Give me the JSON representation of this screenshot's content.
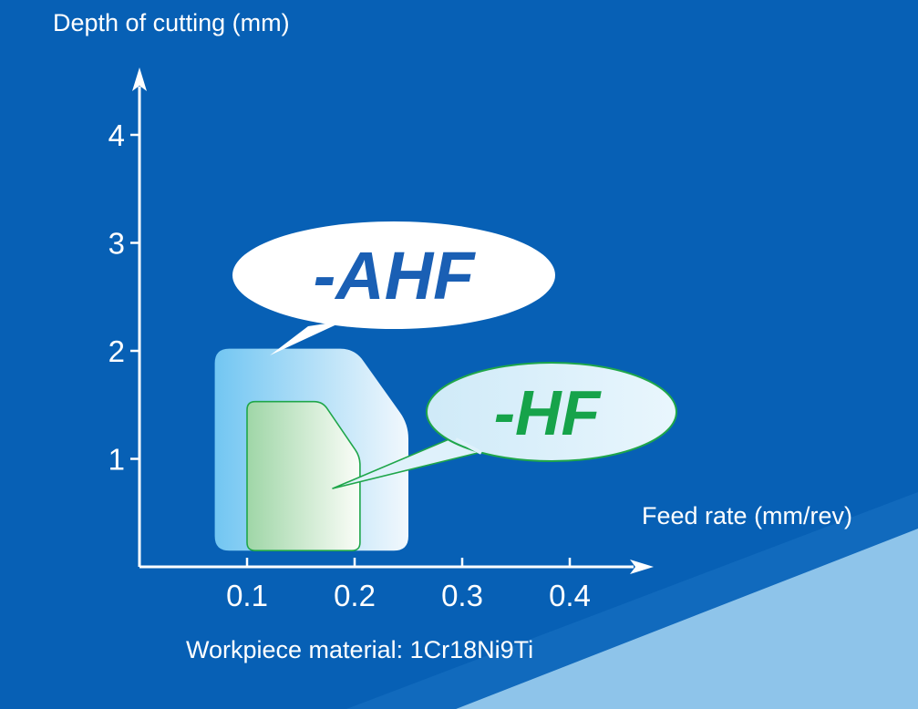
{
  "chart_data": {
    "type": "area",
    "xlabel": "Feed rate (mm/rev)",
    "ylabel": "Depth of cutting (mm)",
    "x_ticks": [
      "0.1",
      "0.2",
      "0.3",
      "0.4"
    ],
    "y_ticks": [
      "1",
      "2",
      "3",
      "4"
    ],
    "xlim": [
      0,
      0.5
    ],
    "ylim": [
      0,
      4.6
    ],
    "series": [
      {
        "name": "-AHF",
        "color": "#1a5fb4",
        "region": [
          {
            "x": 0.07,
            "y": 0.15
          },
          {
            "x": 0.07,
            "y": 2.02
          },
          {
            "x": 0.2,
            "y": 2.02
          },
          {
            "x": 0.25,
            "y": 1.32
          },
          {
            "x": 0.25,
            "y": 0.15
          }
        ]
      },
      {
        "name": "-HF",
        "color": "#16a34a",
        "region": [
          {
            "x": 0.1,
            "y": 0.15
          },
          {
            "x": 0.1,
            "y": 1.53
          },
          {
            "x": 0.17,
            "y": 1.53
          },
          {
            "x": 0.205,
            "y": 1.02
          },
          {
            "x": 0.205,
            "y": 0.15
          }
        ]
      }
    ]
  },
  "footer_note": "Workpiece material: 1Cr18Ni9Ti",
  "colors": {
    "background": "#0760b5",
    "light_band": "#8ec4ea",
    "ahf_text": "#1a5fb4",
    "hf_text": "#16a34a",
    "axis": "#ffffff"
  }
}
